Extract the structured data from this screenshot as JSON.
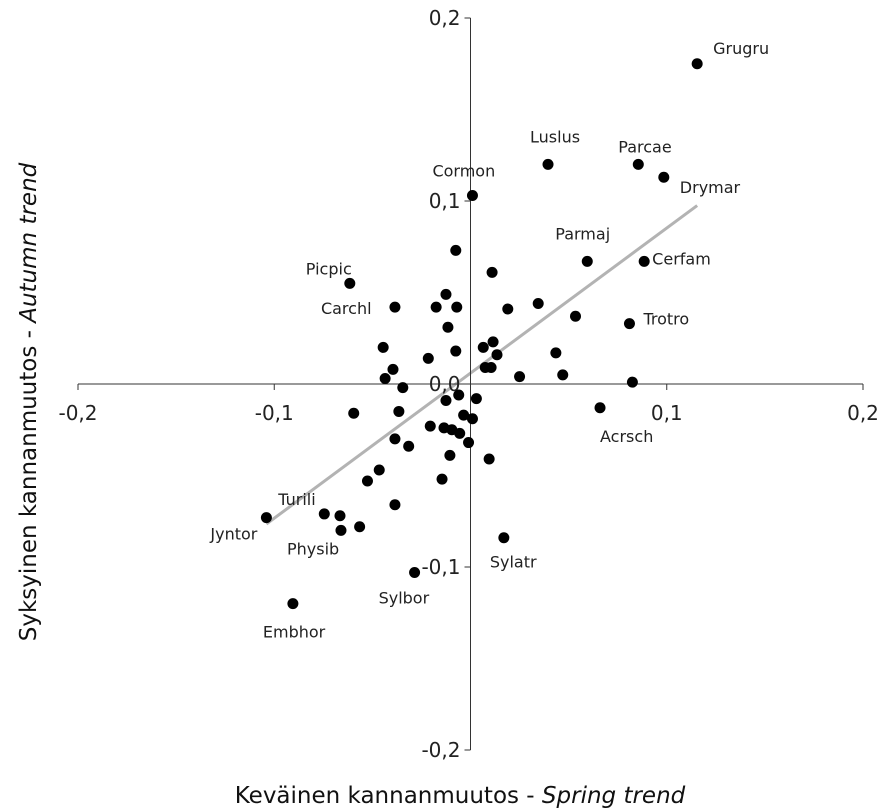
{
  "chart_data": {
    "type": "scatter",
    "xlabel": {
      "main": "Keväinen kannanmuutos - ",
      "italic": "Spring trend"
    },
    "ylabel": {
      "main": "Syksyinen kannanmuutos - ",
      "italic": "Autumn trend"
    },
    "xlim": [
      -0.2,
      0.2
    ],
    "ylim": [
      -0.2,
      0.2
    ],
    "x_ticks": [
      {
        "value": -0.2,
        "label": "-0,2"
      },
      {
        "value": -0.1,
        "label": "-0,1"
      },
      {
        "value": 0.1,
        "label": "0,1"
      },
      {
        "value": 0.2,
        "label": "0,2"
      }
    ],
    "y_ticks": [
      {
        "value": 0.2,
        "label": "0,2"
      },
      {
        "value": 0.1,
        "label": "0,1"
      },
      {
        "value": 0.0,
        "label": "0,0"
      },
      {
        "value": -0.1,
        "label": "-0,1"
      },
      {
        "value": -0.2,
        "label": "-0,2"
      }
    ],
    "trendline": {
      "x": [
        -0.104,
        0.1155
      ],
      "y": [
        -0.0765,
        0.0975
      ]
    },
    "labeled_points": [
      {
        "name": "Grugru",
        "x": 0.1155,
        "y": 0.175
      },
      {
        "name": "Luslus",
        "x": 0.0395,
        "y": 0.12
      },
      {
        "name": "Parcae",
        "x": 0.0855,
        "y": 0.12
      },
      {
        "name": "Drymar",
        "x": 0.0985,
        "y": 0.113
      },
      {
        "name": "Cormon",
        "x": 0.001,
        "y": 0.103
      },
      {
        "name": "Parmaj",
        "x": 0.0595,
        "y": 0.067
      },
      {
        "name": "Cerfam",
        "x": 0.0885,
        "y": 0.067
      },
      {
        "name": "Picpic",
        "x": -0.0615,
        "y": 0.055
      },
      {
        "name": "Carchl",
        "x": -0.0385,
        "y": 0.042
      },
      {
        "name": "Trotro",
        "x": 0.081,
        "y": 0.033
      },
      {
        "name": "Acrsch",
        "x": 0.066,
        "y": -0.013
      },
      {
        "name": "Turili",
        "x": -0.0745,
        "y": -0.071
      },
      {
        "name": "Jyntor",
        "x": -0.104,
        "y": -0.073
      },
      {
        "name": "Physib",
        "x": -0.066,
        "y": -0.08
      },
      {
        "name": "Sylatr",
        "x": 0.017,
        "y": -0.084
      },
      {
        "name": "Sylbor",
        "x": -0.0285,
        "y": -0.103
      },
      {
        "name": "Embhor",
        "x": -0.0905,
        "y": -0.12
      }
    ],
    "points": [
      {
        "x": -0.0075,
        "y": 0.073
      },
      {
        "x": 0.011,
        "y": 0.061
      },
      {
        "x": -0.0125,
        "y": 0.049
      },
      {
        "x": -0.0175,
        "y": 0.042
      },
      {
        "x": -0.007,
        "y": 0.042
      },
      {
        "x": 0.019,
        "y": 0.041
      },
      {
        "x": 0.0345,
        "y": 0.044
      },
      {
        "x": 0.0535,
        "y": 0.037
      },
      {
        "x": -0.0115,
        "y": 0.031
      },
      {
        "x": 0.0115,
        "y": 0.023
      },
      {
        "x": 0.0065,
        "y": 0.02
      },
      {
        "x": -0.0445,
        "y": 0.02
      },
      {
        "x": -0.0075,
        "y": 0.018
      },
      {
        "x": 0.0135,
        "y": 0.016
      },
      {
        "x": 0.0435,
        "y": 0.017
      },
      {
        "x": -0.0215,
        "y": 0.014
      },
      {
        "x": 0.0075,
        "y": 0.009
      },
      {
        "x": 0.0105,
        "y": 0.009
      },
      {
        "x": -0.0395,
        "y": 0.008
      },
      {
        "x": 0.025,
        "y": 0.004
      },
      {
        "x": 0.047,
        "y": 0.005
      },
      {
        "x": -0.0435,
        "y": 0.003
      },
      {
        "x": 0.0825,
        "y": 0.001
      },
      {
        "x": -0.0345,
        "y": -0.002
      },
      {
        "x": -0.006,
        "y": -0.006
      },
      {
        "x": 0.003,
        "y": -0.008
      },
      {
        "x": -0.0125,
        "y": -0.009
      },
      {
        "x": -0.0595,
        "y": -0.016
      },
      {
        "x": -0.0365,
        "y": -0.015
      },
      {
        "x": -0.0035,
        "y": -0.017
      },
      {
        "x": 0.001,
        "y": -0.019
      },
      {
        "x": -0.0205,
        "y": -0.023
      },
      {
        "x": -0.0135,
        "y": -0.024
      },
      {
        "x": -0.0095,
        "y": -0.025
      },
      {
        "x": -0.0055,
        "y": -0.027
      },
      {
        "x": -0.0385,
        "y": -0.03
      },
      {
        "x": -0.0315,
        "y": -0.034
      },
      {
        "x": -0.001,
        "y": -0.032
      },
      {
        "x": -0.0105,
        "y": -0.039
      },
      {
        "x": 0.0095,
        "y": -0.041
      },
      {
        "x": -0.0465,
        "y": -0.047
      },
      {
        "x": -0.0525,
        "y": -0.053
      },
      {
        "x": -0.0145,
        "y": -0.052
      },
      {
        "x": -0.0385,
        "y": -0.066
      },
      {
        "x": -0.0665,
        "y": -0.072
      },
      {
        "x": -0.0565,
        "y": -0.078
      }
    ]
  }
}
